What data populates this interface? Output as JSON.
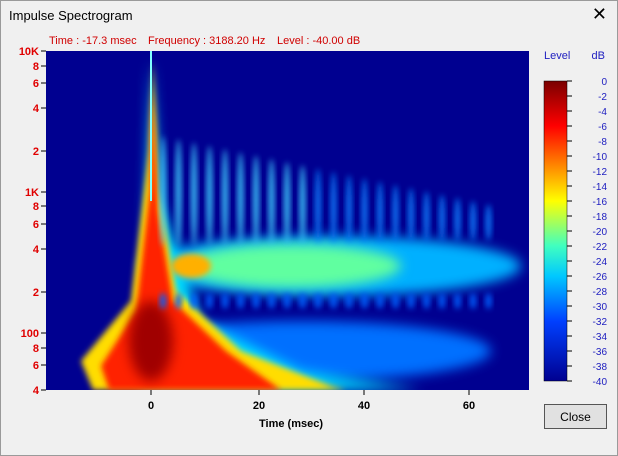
{
  "window": {
    "title": "Impulse Spectrogram",
    "close_button": "Close"
  },
  "status": {
    "time": "Time : -17.3 msec",
    "frequency": "Frequency : 3188.20 Hz",
    "level": "Level : -40.00 dB"
  },
  "plot": {
    "y_tick_labels": [
      "10K",
      "8",
      "6",
      "4",
      "2",
      "1K",
      "8",
      "6",
      "4",
      "2",
      "100",
      "8",
      "6",
      "4"
    ],
    "x_tick_labels": [
      "0",
      "20",
      "40",
      "60"
    ],
    "x_axis_label": "Time (msec)"
  },
  "colorbar": {
    "title": "Level",
    "unit": "dB",
    "labels": [
      "0",
      "-2",
      "-4",
      "-6",
      "-8",
      "-10",
      "-12",
      "-14",
      "-16",
      "-18",
      "-20",
      "-22",
      "-24",
      "-26",
      "-28",
      "-30",
      "-32",
      "-34",
      "-36",
      "-38",
      "-40"
    ]
  }
}
